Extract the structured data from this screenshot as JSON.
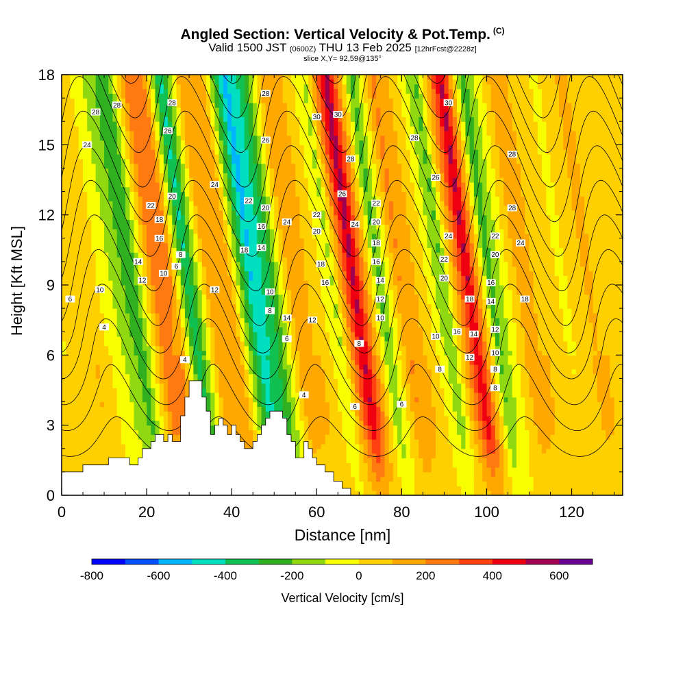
{
  "header": {
    "title": "Angled Section: Vertical Velocity & Pot.Temp.",
    "copyright_mark": "(C)",
    "valid_prefix": "Valid 1500 JST",
    "valid_utc": "(0600Z)",
    "valid_date": "THU 13 Feb 2025",
    "forecast_info": "[12hrFcst@2228z]",
    "slice_info": "slice X,Y= 92,59@135°"
  },
  "chart_data": {
    "type": "heatmap",
    "title": "Angled Section: Vertical Velocity & Pot.Temp.",
    "xlabel": "Distance [nm]",
    "ylabel": "Height [Kft MSL]",
    "xlim": [
      0,
      132
    ],
    "ylim": [
      0,
      18
    ],
    "xticks": [
      0,
      20,
      40,
      60,
      80,
      100,
      120
    ],
    "yticks": [
      0,
      3,
      6,
      9,
      12,
      15,
      18
    ],
    "colorbar": {
      "label": "Vertical Velocity [cm/s]",
      "range": [
        -800,
        700
      ],
      "step": 100,
      "tick_values": [
        -800,
        -600,
        -400,
        -200,
        0,
        200,
        400,
        600
      ],
      "colors": [
        "#0000ff",
        "#0050ff",
        "#00b4ff",
        "#00e0c0",
        "#10c050",
        "#30b020",
        "#90d810",
        "#f8ff00",
        "#ffd000",
        "#ffa800",
        "#ff7a10",
        "#ff4010",
        "#ee0010",
        "#a00050",
        "#6a0090"
      ]
    },
    "velocity_bands": [
      {
        "x": 0,
        "w": -10
      },
      {
        "x": 8,
        "w": 80
      },
      {
        "x": 15,
        "w": -120
      },
      {
        "x": 19,
        "w": -250
      },
      {
        "x": 24,
        "w": 200
      },
      {
        "x": 28,
        "w": 180
      },
      {
        "x": 32,
        "w": -350
      },
      {
        "x": 37,
        "w": 160
      },
      {
        "x": 42,
        "w": 100
      },
      {
        "x": 47,
        "w": -450
      },
      {
        "x": 51,
        "w": -300
      },
      {
        "x": 56,
        "w": 120
      },
      {
        "x": 61,
        "w": 80
      },
      {
        "x": 66,
        "w": -100
      },
      {
        "x": 71,
        "w": 480
      },
      {
        "x": 77,
        "w": -200
      },
      {
        "x": 82,
        "w": 180
      },
      {
        "x": 87,
        "w": 50
      },
      {
        "x": 92,
        "w": -180
      },
      {
        "x": 98,
        "w": 450
      },
      {
        "x": 103,
        "w": -220
      },
      {
        "x": 110,
        "w": 120
      },
      {
        "x": 116,
        "w": 60
      },
      {
        "x": 120,
        "w": -20
      },
      {
        "x": 126,
        "w": 100
      },
      {
        "x": 132,
        "w": 40
      }
    ],
    "terrain": [
      [
        0,
        1.0
      ],
      [
        5,
        1.0
      ],
      [
        5,
        1.3
      ],
      [
        11,
        1.3
      ],
      [
        11,
        1.6
      ],
      [
        16,
        1.6
      ],
      [
        16,
        1.3
      ],
      [
        18,
        1.3
      ],
      [
        18,
        1.6
      ],
      [
        19,
        1.6
      ],
      [
        19,
        2.0
      ],
      [
        21,
        2.0
      ],
      [
        21,
        2.3
      ],
      [
        22,
        2.3
      ],
      [
        22,
        2.6
      ],
      [
        24,
        2.6
      ],
      [
        24,
        2.3
      ],
      [
        25,
        2.3
      ],
      [
        25,
        2.6
      ],
      [
        26,
        2.6
      ],
      [
        26,
        2.3
      ],
      [
        28,
        2.3
      ],
      [
        28,
        3.4
      ],
      [
        29,
        3.4
      ],
      [
        29,
        4.2
      ],
      [
        30,
        4.2
      ],
      [
        30,
        4.9
      ],
      [
        33,
        4.9
      ],
      [
        33,
        4.2
      ],
      [
        34,
        4.2
      ],
      [
        34,
        3.6
      ],
      [
        35,
        3.6
      ],
      [
        35,
        2.6
      ],
      [
        36,
        2.6
      ],
      [
        36,
        3.0
      ],
      [
        37,
        3.0
      ],
      [
        37,
        3.3
      ],
      [
        38,
        3.3
      ],
      [
        38,
        3.0
      ],
      [
        39,
        3.0
      ],
      [
        39,
        2.6
      ],
      [
        40,
        2.6
      ],
      [
        40,
        3.0
      ],
      [
        41,
        3.0
      ],
      [
        41,
        2.6
      ],
      [
        42,
        2.6
      ],
      [
        42,
        2.3
      ],
      [
        43,
        2.3
      ],
      [
        43,
        2.0
      ],
      [
        45,
        2.0
      ],
      [
        45,
        2.3
      ],
      [
        46,
        2.3
      ],
      [
        46,
        2.6
      ],
      [
        47,
        2.6
      ],
      [
        47,
        3.0
      ],
      [
        48,
        3.0
      ],
      [
        48,
        3.3
      ],
      [
        49,
        3.3
      ],
      [
        49,
        3.6
      ],
      [
        52,
        3.6
      ],
      [
        52,
        3.3
      ],
      [
        53,
        3.3
      ],
      [
        53,
        2.6
      ],
      [
        54,
        2.6
      ],
      [
        54,
        2.3
      ],
      [
        55,
        2.3
      ],
      [
        55,
        1.6
      ],
      [
        57,
        1.6
      ],
      [
        57,
        2.3
      ],
      [
        58,
        2.3
      ],
      [
        58,
        2.0
      ],
      [
        59,
        2.0
      ],
      [
        59,
        1.6
      ],
      [
        60,
        1.6
      ],
      [
        60,
        1.3
      ],
      [
        62,
        1.3
      ],
      [
        62,
        1.0
      ],
      [
        64,
        1.0
      ],
      [
        64,
        0.6
      ],
      [
        66,
        0.6
      ],
      [
        66,
        0.3
      ],
      [
        68,
        0.3
      ],
      [
        68,
        0.0
      ],
      [
        132,
        0.0
      ]
    ],
    "theta_contour_labels": [
      {
        "x": 8,
        "y": 16.4,
        "v": "28"
      },
      {
        "x": 13,
        "y": 16.7,
        "v": "28"
      },
      {
        "x": 6,
        "y": 15.0,
        "v": "24"
      },
      {
        "x": 26,
        "y": 16.8,
        "v": "28"
      },
      {
        "x": 25,
        "y": 15.6,
        "v": "26"
      },
      {
        "x": 21,
        "y": 12.4,
        "v": "22"
      },
      {
        "x": 26,
        "y": 12.8,
        "v": "20"
      },
      {
        "x": 23,
        "y": 11.8,
        "v": "18"
      },
      {
        "x": 23,
        "y": 11.0,
        "v": "16"
      },
      {
        "x": 18,
        "y": 10.0,
        "v": "14"
      },
      {
        "x": 19,
        "y": 9.2,
        "v": "12"
      },
      {
        "x": 24,
        "y": 9.5,
        "v": "10"
      },
      {
        "x": 9,
        "y": 8.8,
        "v": "10"
      },
      {
        "x": 2,
        "y": 8.4,
        "v": "6"
      },
      {
        "x": 10,
        "y": 7.2,
        "v": "4"
      },
      {
        "x": 28,
        "y": 10.3,
        "v": "8"
      },
      {
        "x": 27,
        "y": 9.8,
        "v": "6"
      },
      {
        "x": 36,
        "y": 13.3,
        "v": "24"
      },
      {
        "x": 36,
        "y": 8.8,
        "v": "12"
      },
      {
        "x": 44,
        "y": 12.6,
        "v": "22"
      },
      {
        "x": 43,
        "y": 10.5,
        "v": "18"
      },
      {
        "x": 48,
        "y": 17.2,
        "v": "28"
      },
      {
        "x": 48,
        "y": 15.2,
        "v": "26"
      },
      {
        "x": 48,
        "y": 12.3,
        "v": "20"
      },
      {
        "x": 47,
        "y": 11.5,
        "v": "16"
      },
      {
        "x": 47,
        "y": 10.6,
        "v": "14"
      },
      {
        "x": 53,
        "y": 11.7,
        "v": "24"
      },
      {
        "x": 49,
        "y": 8.7,
        "v": "10"
      },
      {
        "x": 49,
        "y": 7.9,
        "v": "8"
      },
      {
        "x": 53,
        "y": 7.6,
        "v": "14"
      },
      {
        "x": 53,
        "y": 6.7,
        "v": "6"
      },
      {
        "x": 29,
        "y": 5.8,
        "v": "4"
      },
      {
        "x": 60,
        "y": 16.2,
        "v": "30"
      },
      {
        "x": 60,
        "y": 12.0,
        "v": "22"
      },
      {
        "x": 60,
        "y": 11.3,
        "v": "20"
      },
      {
        "x": 61,
        "y": 9.9,
        "v": "18"
      },
      {
        "x": 62,
        "y": 9.1,
        "v": "16"
      },
      {
        "x": 59,
        "y": 7.5,
        "v": "12"
      },
      {
        "x": 57,
        "y": 4.3,
        "v": "4"
      },
      {
        "x": 65,
        "y": 16.3,
        "v": "30"
      },
      {
        "x": 68,
        "y": 14.4,
        "v": "28"
      },
      {
        "x": 66,
        "y": 12.9,
        "v": "26"
      },
      {
        "x": 69,
        "y": 11.6,
        "v": "24"
      },
      {
        "x": 74,
        "y": 12.5,
        "v": "22"
      },
      {
        "x": 74,
        "y": 11.7,
        "v": "20"
      },
      {
        "x": 74,
        "y": 10.8,
        "v": "18"
      },
      {
        "x": 74,
        "y": 10.0,
        "v": "16"
      },
      {
        "x": 75,
        "y": 9.2,
        "v": "14"
      },
      {
        "x": 75,
        "y": 8.4,
        "v": "12"
      },
      {
        "x": 75,
        "y": 7.6,
        "v": "10"
      },
      {
        "x": 70,
        "y": 6.5,
        "v": "8"
      },
      {
        "x": 69,
        "y": 3.8,
        "v": "6"
      },
      {
        "x": 80,
        "y": 3.9,
        "v": "6"
      },
      {
        "x": 91,
        "y": 16.8,
        "v": "30"
      },
      {
        "x": 83,
        "y": 15.3,
        "v": "28"
      },
      {
        "x": 88,
        "y": 13.6,
        "v": "26"
      },
      {
        "x": 91,
        "y": 11.1,
        "v": "24"
      },
      {
        "x": 90,
        "y": 10.1,
        "v": "22"
      },
      {
        "x": 90,
        "y": 9.3,
        "v": "20"
      },
      {
        "x": 93,
        "y": 7.0,
        "v": "16"
      },
      {
        "x": 88,
        "y": 6.8,
        "v": "10"
      },
      {
        "x": 89,
        "y": 5.4,
        "v": "8"
      },
      {
        "x": 96,
        "y": 8.4,
        "v": "18"
      },
      {
        "x": 97,
        "y": 6.9,
        "v": "14"
      },
      {
        "x": 96,
        "y": 5.9,
        "v": "12"
      },
      {
        "x": 102,
        "y": 11.1,
        "v": "22"
      },
      {
        "x": 102,
        "y": 10.3,
        "v": "20"
      },
      {
        "x": 101,
        "y": 9.1,
        "v": "16"
      },
      {
        "x": 101,
        "y": 8.3,
        "v": "14"
      },
      {
        "x": 102,
        "y": 7.1,
        "v": "12"
      },
      {
        "x": 102,
        "y": 6.1,
        "v": "10"
      },
      {
        "x": 102,
        "y": 5.4,
        "v": "8"
      },
      {
        "x": 102,
        "y": 4.6,
        "v": "8"
      },
      {
        "x": 106,
        "y": 14.6,
        "v": "28"
      },
      {
        "x": 106,
        "y": 12.3,
        "v": "28"
      },
      {
        "x": 108,
        "y": 10.8,
        "v": "24"
      },
      {
        "x": 109,
        "y": 8.4,
        "v": "18"
      }
    ]
  }
}
